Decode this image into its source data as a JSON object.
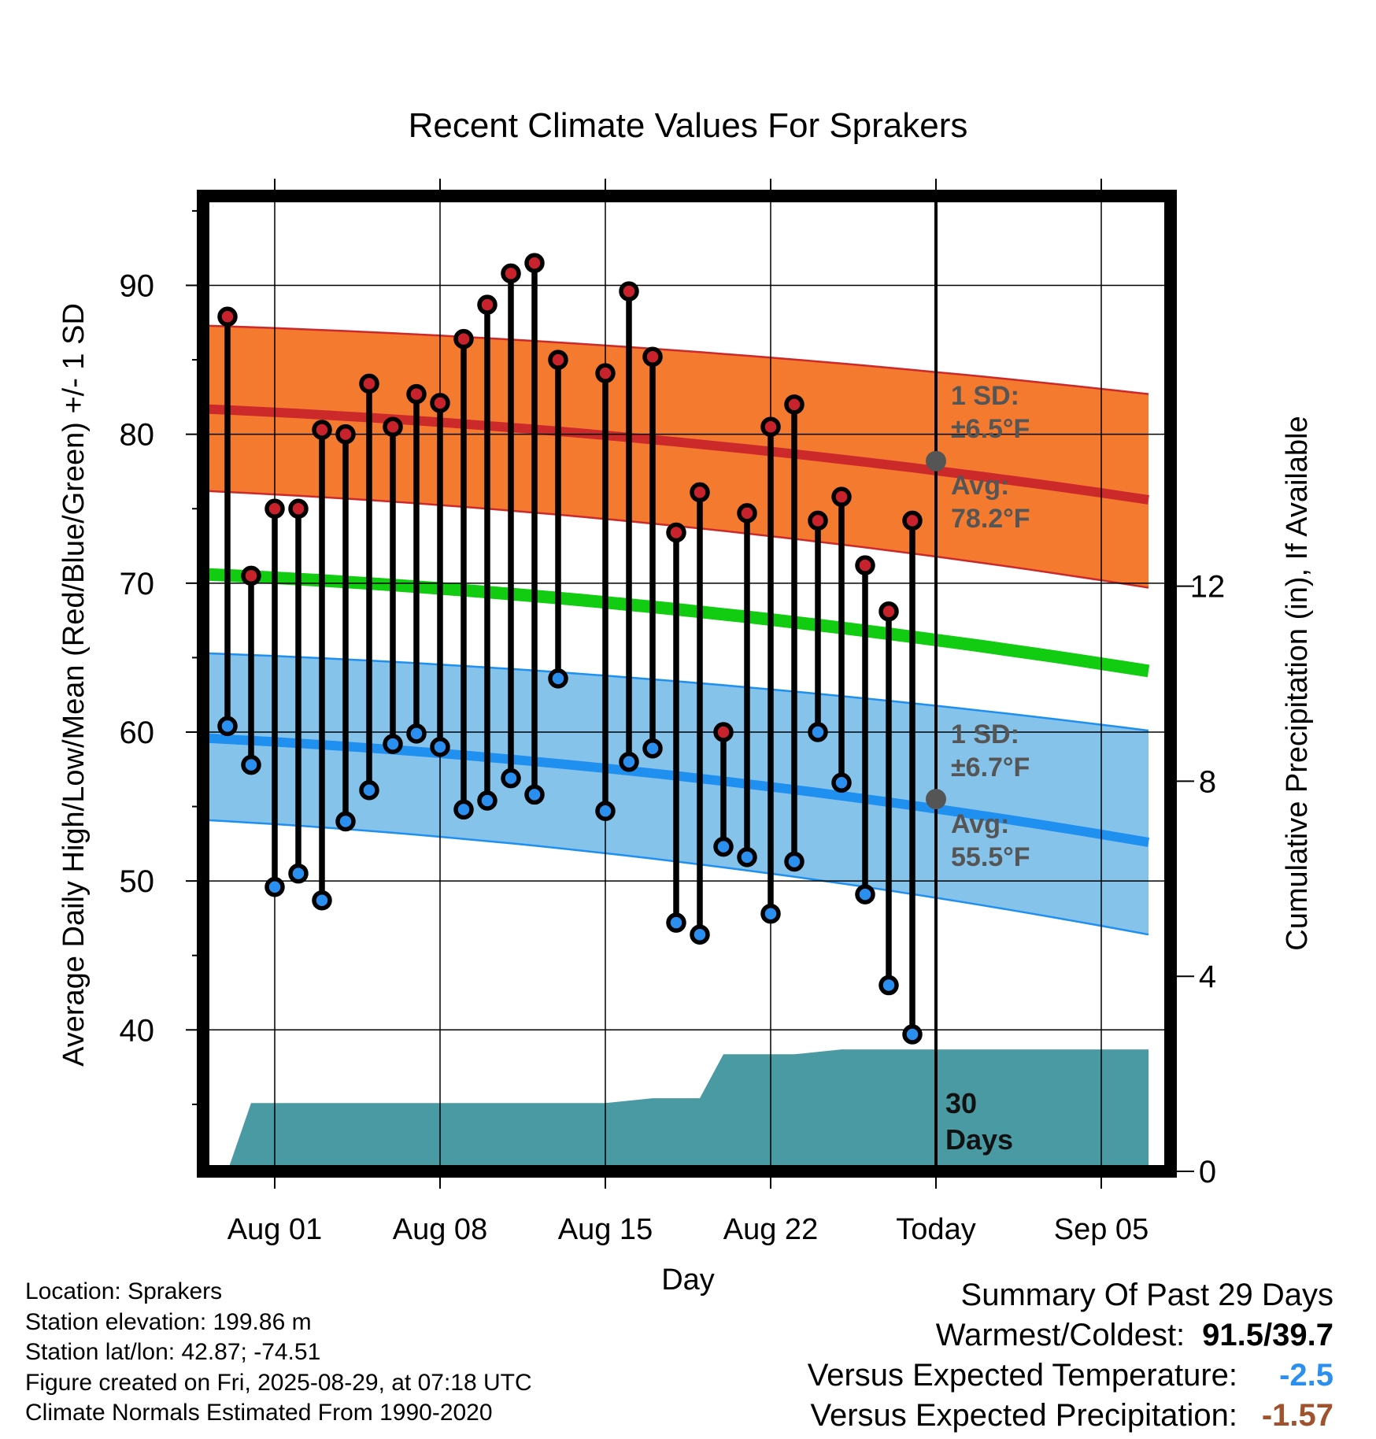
{
  "chart_data": {
    "type": "line",
    "title": "Recent Climate Values For Sprakers",
    "xlabel": "Day",
    "ylabel": "Average Daily High/Low/Mean (Red/Blue/Green) +/- 1 SD",
    "y2label": "Cumulative Precipitation (in), If Available",
    "ylim": [
      30.5,
      96
    ],
    "y2lim": [
      0,
      20
    ],
    "x_tick_labels": [
      "Aug 01",
      "Aug 08",
      "Aug 15",
      "Aug 22",
      "Today",
      "Sep 05"
    ],
    "x_tick_dates": [
      "2025-08-01",
      "2025-08-08",
      "2025-08-15",
      "2025-08-22",
      "2025-08-29",
      "2025-09-05"
    ],
    "y_ticks": [
      40,
      50,
      60,
      70,
      80,
      90
    ],
    "y2_ticks": [
      0,
      4,
      8,
      12
    ],
    "grid": true,
    "x_dates": [
      "2025-07-30",
      "2025-07-31",
      "2025-08-01",
      "2025-08-02",
      "2025-08-03",
      "2025-08-04",
      "2025-08-05",
      "2025-08-06",
      "2025-08-07",
      "2025-08-08",
      "2025-08-09",
      "2025-08-10",
      "2025-08-11",
      "2025-08-12",
      "2025-08-13",
      "2025-08-15",
      "2025-08-16",
      "2025-08-17",
      "2025-08-18",
      "2025-08-19",
      "2025-08-20",
      "2025-08-21",
      "2025-08-22",
      "2025-08-23",
      "2025-08-24",
      "2025-08-25",
      "2025-08-26",
      "2025-08-27",
      "2025-08-28"
    ],
    "series": [
      {
        "name": "High",
        "color": "#c8232c",
        "values": [
          87.9,
          70.5,
          75.0,
          75.0,
          80.3,
          80.0,
          83.4,
          80.5,
          82.7,
          82.1,
          86.4,
          88.7,
          90.8,
          91.5,
          85.0,
          84.1,
          89.6,
          85.2,
          73.4,
          76.1,
          60.0,
          74.7,
          80.5,
          82.0,
          74.2,
          75.8,
          71.2,
          68.1,
          74.2
        ]
      },
      {
        "name": "Low",
        "color": "#2b8ff0",
        "values": [
          60.4,
          57.8,
          49.6,
          50.5,
          48.7,
          54.0,
          56.1,
          59.2,
          59.9,
          59.0,
          54.8,
          55.4,
          56.9,
          55.8,
          63.6,
          54.7,
          58.0,
          58.9,
          47.2,
          46.4,
          52.3,
          51.6,
          47.8,
          51.3,
          60.0,
          56.6,
          49.1,
          43.0,
          39.7
        ]
      }
    ],
    "normal_bands": {
      "date_range": [
        "2025-07-29",
        "2025-09-07"
      ],
      "high": {
        "mean": [
          81.7,
          75.6
        ],
        "upper": [
          87.3,
          82.7
        ],
        "lower": [
          76.2,
          69.7
        ],
        "color": "#f47a30",
        "line_color": "#cc2a2a"
      },
      "low": {
        "mean": [
          59.6,
          52.6
        ],
        "upper": [
          65.3,
          60.1
        ],
        "lower": [
          54.1,
          46.4
        ],
        "color": "#85c3ea",
        "line_color": "#1f8ff0"
      },
      "mean": {
        "values": [
          70.6,
          64.1
        ],
        "color": "#12cc12"
      }
    },
    "precip_area": {
      "color": "#4a9aa3",
      "dates": [
        "2025-07-30",
        "2025-07-31",
        "2025-08-01",
        "2025-08-15",
        "2025-08-17",
        "2025-08-19",
        "2025-08-20",
        "2025-08-22",
        "2025-08-23",
        "2025-08-25",
        "2025-08-29",
        "2025-09-07"
      ],
      "values": [
        0.0,
        1.4,
        1.4,
        1.4,
        1.5,
        1.5,
        2.4,
        2.4,
        2.4,
        2.5,
        2.5,
        2.5
      ]
    },
    "annotations": {
      "high_sd_label": "1 SD:",
      "high_sd_value": "±6.5°F",
      "high_avg_label": "Avg:",
      "high_avg_value": "78.2°F",
      "low_sd_label": "1 SD:",
      "low_sd_value": "±6.7°F",
      "low_avg_label": "Avg:",
      "low_avg_value": "55.5°F",
      "period_label_1": "30",
      "period_label_2": "Days",
      "today_date": "2025-08-29",
      "avg_marker_color": "#555555"
    }
  },
  "footer": {
    "location": "Location: Sprakers",
    "elevation": "Station elevation: 199.86 m",
    "latlon": "Station lat/lon: 42.87; -74.51",
    "created": "Figure created on Fri, 2025-08-29, at 07:18 UTC",
    "normals": "Climate Normals Estimated From 1990-2020"
  },
  "summary": {
    "title": "Summary Of Past 29 Days",
    "warm_cold_label": "Warmest/Coldest:",
    "warm_cold_value": "91.5/39.7",
    "temp_label": "Versus Expected Temperature:",
    "temp_value": "-2.5",
    "precip_label": "Versus Expected Precipitation:",
    "precip_value": "-1.57"
  }
}
